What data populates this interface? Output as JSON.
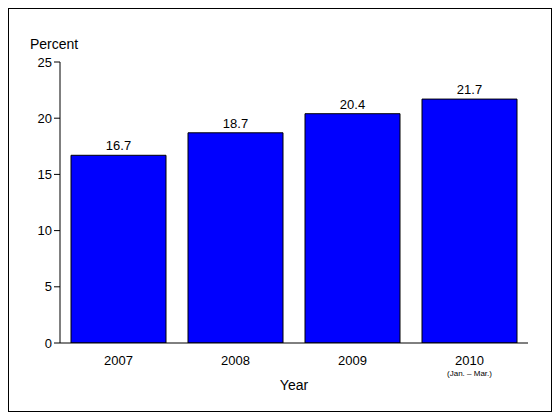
{
  "chart_data": {
    "type": "bar",
    "y_label": "Percent",
    "x_label": "Year",
    "categories": [
      "2007",
      "2008",
      "2009",
      "2010 (Jan. – Mar.)"
    ],
    "values": [
      16.7,
      18.7,
      20.4,
      21.7
    ],
    "color": "#0000ff",
    "ylim": [
      0,
      25
    ],
    "yticks": [
      0,
      5,
      10,
      15,
      20,
      25
    ],
    "grid": false,
    "data_labels": true
  }
}
